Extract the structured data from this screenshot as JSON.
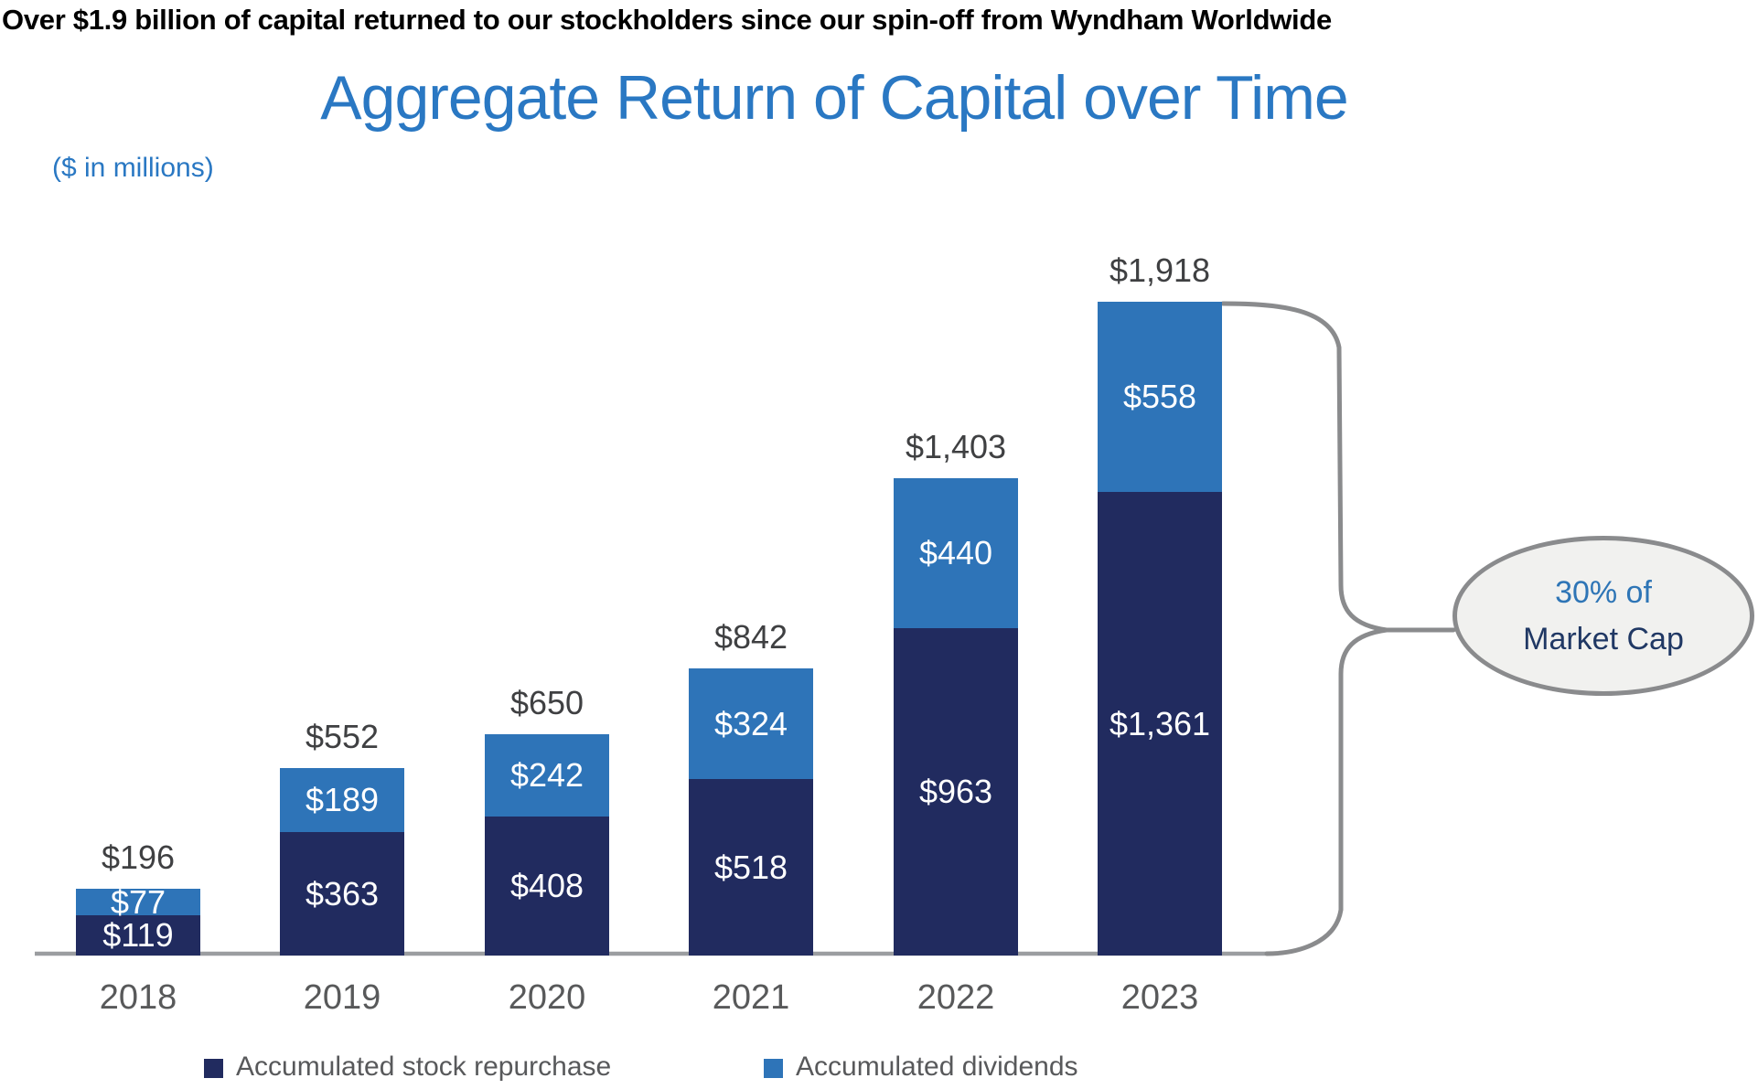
{
  "page": {
    "headline": "Over $1.9 billion of capital returned to our stockholders since our spin-off from Wyndham Worldwide",
    "title": "Aggregate Return of Capital over Time",
    "subtitle": "($ in millions)"
  },
  "callout": {
    "line1": "30% of",
    "line2": "Market Cap"
  },
  "colors": {
    "headline_black": "#000000",
    "title_blue": "#2A78C3",
    "navy": "#212B5F",
    "blue": "#2E74B8",
    "total_gray": "#3F4042",
    "year_gray": "#58595A",
    "legend_gray": "#58595B",
    "axis_gray": "#9B9DA0",
    "brace_gray": "#8A8B8D",
    "callout_fill": "#F1F1EF",
    "callout_border": "#8A8B8D",
    "callout_blue": "#2E75B6",
    "callout_navy": "#203864"
  },
  "chart_data": {
    "type": "bar",
    "stacked": true,
    "title": "Aggregate Return of Capital over Time",
    "units": "$ in millions",
    "xlabel": "",
    "ylabel": "",
    "ylim": [
      0,
      1918
    ],
    "grid": false,
    "legend_position": "bottom",
    "categories": [
      "2018",
      "2019",
      "2020",
      "2021",
      "2022",
      "2023"
    ],
    "series": [
      {
        "name": "Accumulated stock repurchase",
        "color": "#212B5F",
        "values": [
          119,
          363,
          408,
          518,
          963,
          1361
        ],
        "labels": [
          "$119",
          "$363",
          "$408",
          "$518",
          "$963",
          "$1,361"
        ]
      },
      {
        "name": "Accumulated dividends",
        "color": "#2E74B8",
        "values": [
          77,
          189,
          242,
          324,
          440,
          558
        ],
        "labels": [
          "$77",
          "$189",
          "$242",
          "$324",
          "$440",
          "$558"
        ]
      }
    ],
    "totals": [
      196,
      552,
      650,
      842,
      1403,
      1918
    ],
    "total_labels": [
      "$196",
      "$552",
      "$650",
      "$842",
      "$1,403",
      "$1,918"
    ],
    "annotation": "30% of Market Cap"
  }
}
